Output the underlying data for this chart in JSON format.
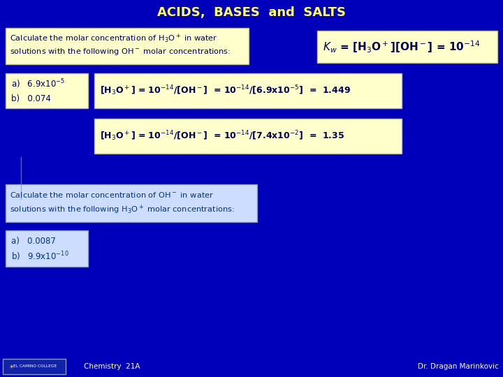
{
  "bg_color": "#0000BB",
  "title": "ACIDS,  BASES  and  SALTS",
  "title_color": "#FFFF55",
  "box_fill": "#FFFFCC",
  "box_fill_cyan": "#CCFFFF",
  "box_edge": "#CCCC88",
  "dark_blue_text": "#000088",
  "yellow_text": "#FFFF44",
  "cyan_text": "#44FFFF",
  "white_text": "#FFFFFF",
  "footer_left": "Chemistry  21A",
  "footer_right": "Dr. Dragan Marinkovic"
}
